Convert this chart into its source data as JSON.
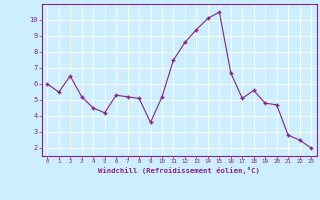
{
  "x": [
    0,
    1,
    2,
    3,
    4,
    5,
    6,
    7,
    8,
    9,
    10,
    11,
    12,
    13,
    14,
    15,
    16,
    17,
    18,
    19,
    20,
    21,
    22,
    23
  ],
  "y": [
    6.0,
    5.5,
    6.5,
    5.2,
    4.5,
    4.2,
    5.3,
    5.2,
    5.1,
    3.6,
    5.2,
    7.5,
    8.6,
    9.4,
    10.1,
    10.5,
    6.7,
    5.1,
    5.6,
    4.8,
    4.7,
    2.8,
    2.5,
    2.0
  ],
  "line_color": "#882288",
  "marker_color": "#882288",
  "bg_color": "#cceeff",
  "grid_color": "#aabbcc",
  "plot_bg": "#cceeff",
  "axis_label_color": "#882288",
  "tick_color": "#882288",
  "spine_color": "#882288",
  "xlabel": "Windchill (Refroidissement éolien,°C)",
  "ylim": [
    1.5,
    11.0
  ],
  "xlim": [
    -0.5,
    23.5
  ],
  "yticks": [
    2,
    3,
    4,
    5,
    6,
    7,
    8,
    9,
    10
  ],
  "xticks": [
    0,
    1,
    2,
    3,
    4,
    5,
    6,
    7,
    8,
    9,
    10,
    11,
    12,
    13,
    14,
    15,
    16,
    17,
    18,
    19,
    20,
    21,
    22,
    23
  ]
}
